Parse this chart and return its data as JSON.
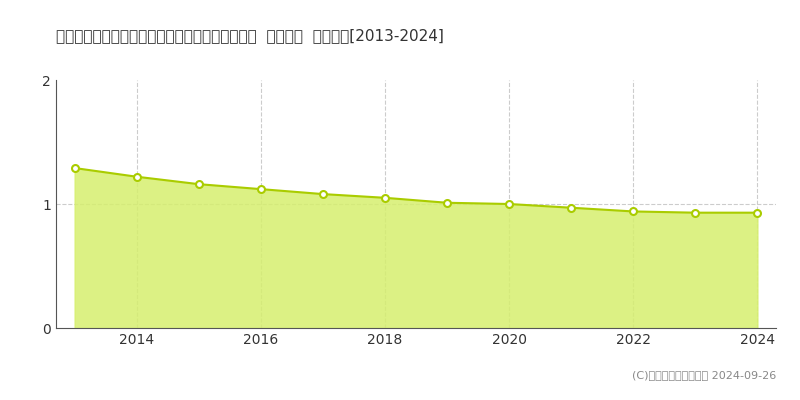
{
  "title": "鹿児島県肝属郡錦江町田代川原字宮前２９４番１  基準地価  地価推移[2013-2024]",
  "years": [
    2013,
    2014,
    2015,
    2016,
    2017,
    2018,
    2019,
    2020,
    2021,
    2022,
    2023,
    2024
  ],
  "values": [
    1.29,
    1.22,
    1.16,
    1.12,
    1.08,
    1.05,
    1.01,
    1.0,
    0.97,
    0.94,
    0.93,
    0.93
  ],
  "ylim": [
    0,
    2
  ],
  "yticks": [
    0,
    1,
    2
  ],
  "xticks": [
    2014,
    2016,
    2018,
    2020,
    2022,
    2024
  ],
  "line_color": "#aacc00",
  "fill_color": "#d6ef6e",
  "fill_alpha": 0.85,
  "marker_color": "white",
  "marker_edge_color": "#aacc00",
  "marker_size": 5,
  "grid_color": "#cccccc",
  "background_color": "#ffffff",
  "legend_marker_color": "#ccee44",
  "copyright_text": "(C)土地価格ドットコム 2024-09-26",
  "title_fontsize": 11,
  "tick_fontsize": 10,
  "legend_fontsize": 9,
  "copyright_fontsize": 8
}
